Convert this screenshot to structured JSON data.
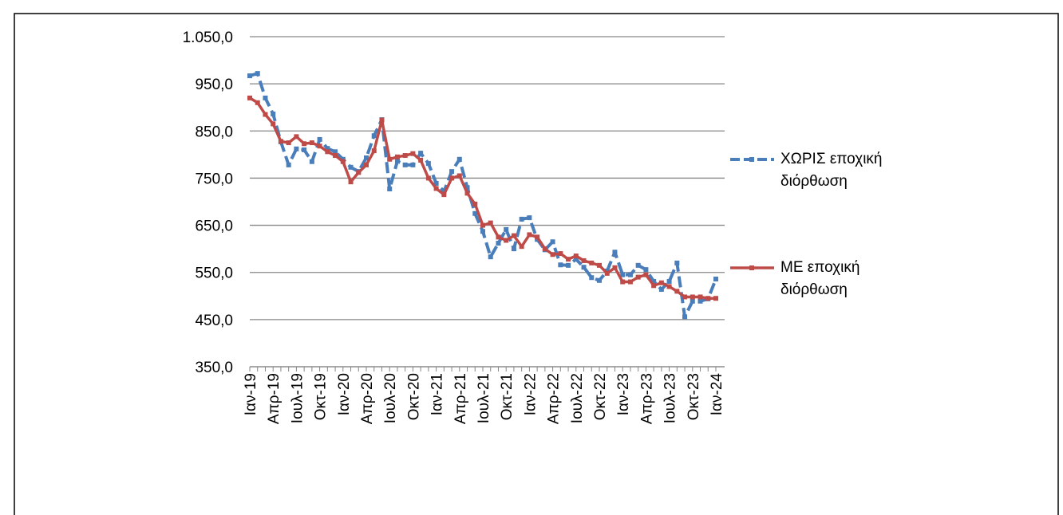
{
  "chart_data": {
    "type": "line",
    "categories": [
      "Ιαν-19",
      null,
      null,
      "Απρ-19",
      null,
      null,
      "Ιουλ-19",
      null,
      null,
      "Οκτ-19",
      null,
      null,
      "Ιαν-20",
      null,
      null,
      "Απρ-20",
      null,
      null,
      "Ιουλ-20",
      null,
      null,
      "Οκτ-20",
      null,
      null,
      "Ιαν-21",
      null,
      null,
      "Απρ-21",
      null,
      null,
      "Ιουλ-21",
      null,
      null,
      "Οκτ-21",
      null,
      null,
      "Ιαν-22",
      null,
      null,
      "Απρ-22",
      null,
      null,
      "Ιουλ-22",
      null,
      null,
      "Οκτ-22",
      null,
      null,
      "Ιαν-23",
      null,
      null,
      "Απρ-23",
      null,
      null,
      "Ιουλ-23",
      null,
      null,
      "Οκτ-23",
      null,
      null,
      "Ιαν-24"
    ],
    "series": [
      {
        "name": "ΧΩΡΙΣ εποχική διόρθωση",
        "color": "#4a7ebb",
        "dashed": true,
        "values": [
          967,
          972,
          920,
          886,
          827,
          778,
          812,
          810,
          785,
          832,
          813,
          806,
          790,
          773,
          764,
          793,
          840,
          874,
          727,
          786,
          778,
          778,
          803,
          781,
          739,
          722,
          764,
          790,
          730,
          675,
          637,
          583,
          612,
          641,
          600,
          663,
          666,
          620,
          598,
          615,
          566,
          565,
          578,
          561,
          539,
          533,
          553,
          593,
          545,
          545,
          565,
          556,
          531,
          514,
          531,
          570,
          456,
          489,
          489,
          494,
          536
        ]
      },
      {
        "name": "ΜΕ εποχική διόρθωση",
        "color": "#be4b48",
        "dashed": false,
        "values": [
          920,
          910,
          885,
          865,
          828,
          825,
          838,
          823,
          825,
          818,
          806,
          798,
          785,
          742,
          762,
          778,
          808,
          873,
          790,
          795,
          798,
          802,
          788,
          750,
          728,
          715,
          750,
          755,
          718,
          695,
          650,
          655,
          625,
          618,
          628,
          605,
          630,
          625,
          600,
          588,
          590,
          578,
          585,
          575,
          570,
          565,
          548,
          560,
          530,
          530,
          540,
          545,
          522,
          528,
          520,
          510,
          498,
          498,
          498,
          495,
          495
        ]
      }
    ],
    "ylim": [
      350,
      1050
    ],
    "yticks": [
      {
        "value": 350,
        "label": "350,0"
      },
      {
        "value": 450,
        "label": "450,0"
      },
      {
        "value": 550,
        "label": "550,0"
      },
      {
        "value": 650,
        "label": "650,0"
      },
      {
        "value": 750,
        "label": "750,0"
      },
      {
        "value": 850,
        "label": "850,0"
      },
      {
        "value": 950,
        "label": "950,0"
      },
      {
        "value": 1050,
        "label": "1.050,0"
      }
    ],
    "grid": true,
    "legend": "right"
  }
}
